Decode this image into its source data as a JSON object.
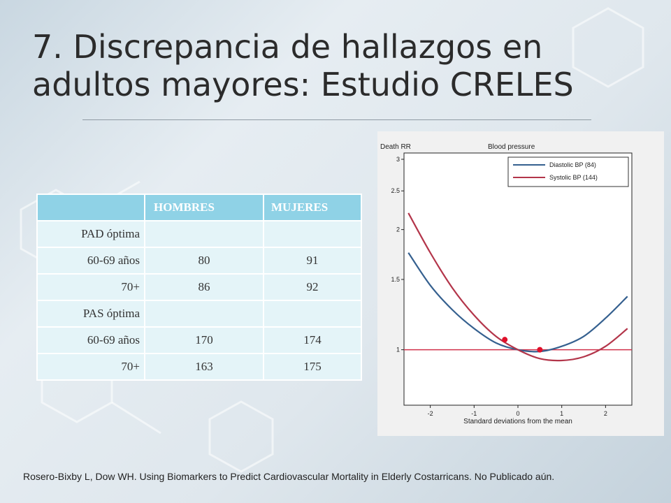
{
  "slide": {
    "title_line1": "7. Discrepancia de hallazgos en",
    "title_line2": "adultos mayores: Estudio CRELES",
    "citation": "Rosero-Bixby L, Dow WH. Using Biomarkers to Predict Cardiovascular Mortality in Elderly Costarricans. No Publicado aún."
  },
  "table": {
    "headers": [
      "",
      "HOMBRES",
      "MUJERES"
    ],
    "rows": [
      {
        "label": "PAD óptima",
        "hombres": "",
        "mujeres": ""
      },
      {
        "label": "60-69 años",
        "hombres": "80",
        "mujeres": "91"
      },
      {
        "label": "70+",
        "hombres": "86",
        "mujeres": "92"
      },
      {
        "label": "PAS óptima",
        "hombres": "",
        "mujeres": ""
      },
      {
        "label": "60-69 años",
        "hombres": "170",
        "mujeres": "174"
      },
      {
        "label": "70+",
        "hombres": "163",
        "mujeres": "175"
      }
    ]
  },
  "chart_data": {
    "type": "line",
    "title": "Blood pressure",
    "ylabel": "Death RR",
    "xlabel": "Standard deviations from the mean",
    "xlim": [
      -2.6,
      2.6
    ],
    "ylim": [
      0.75,
      3
    ],
    "y_scale": "log",
    "x_ticks": [
      -2,
      -1,
      0,
      1,
      2
    ],
    "y_ticks": [
      1,
      1.5,
      2,
      2.5,
      3
    ],
    "y_tick_labels": [
      "1",
      "1.5",
      "2",
      "2.5",
      "3"
    ],
    "reference_line": {
      "y": 1,
      "color": "#d0304a"
    },
    "legend_position": "top-right",
    "series": [
      {
        "name": "Diastolic BP (84)",
        "color": "#35608f",
        "x": [
          -2.5,
          -2,
          -1.5,
          -1,
          -0.5,
          0,
          0.5,
          1,
          1.5,
          2,
          2.5
        ],
        "y": [
          1.75,
          1.45,
          1.26,
          1.13,
          1.04,
          1.0,
          0.99,
          1.02,
          1.08,
          1.2,
          1.36
        ],
        "marker": {
          "x": 0.5,
          "y": 1.0
        }
      },
      {
        "name": "Systolic BP (144)",
        "color": "#b3354a",
        "x": [
          -2.5,
          -2,
          -1.5,
          -1,
          -0.5,
          0,
          0.5,
          1,
          1.5,
          2,
          2.5
        ],
        "y": [
          2.2,
          1.75,
          1.43,
          1.22,
          1.08,
          1.0,
          0.95,
          0.94,
          0.96,
          1.02,
          1.13
        ],
        "marker": {
          "x": -0.3,
          "y": 1.06
        }
      }
    ]
  }
}
